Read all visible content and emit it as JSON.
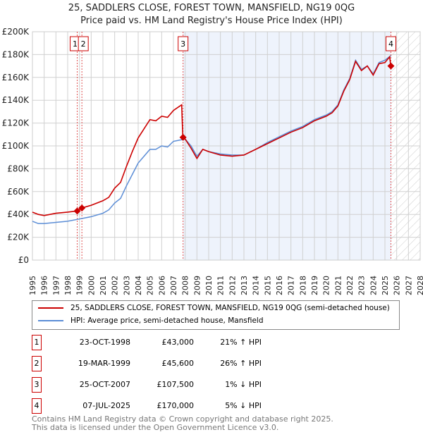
{
  "title": "25, SADDLERS CLOSE, FOREST TOWN, MANSFIELD, NG19 0QG",
  "subtitle": "Price paid vs. HM Land Registry's House Price Index (HPI)",
  "chart_data": {
    "type": "line",
    "ylim": [
      0,
      200000
    ],
    "xlim": [
      1995,
      2028
    ],
    "yticks": [
      "£0",
      "£20K",
      "£40K",
      "£60K",
      "£80K",
      "£100K",
      "£120K",
      "£140K",
      "£160K",
      "£180K",
      "£200K"
    ],
    "xticks": [
      "1995",
      "1996",
      "1997",
      "1998",
      "1999",
      "2000",
      "2001",
      "2002",
      "2003",
      "2004",
      "2005",
      "2006",
      "2007",
      "2008",
      "2009",
      "2010",
      "2011",
      "2012",
      "2013",
      "2014",
      "2015",
      "2016",
      "2017",
      "2018",
      "2019",
      "2020",
      "2021",
      "2022",
      "2023",
      "2024",
      "2025",
      "2026",
      "2027",
      "2028"
    ],
    "series": [
      {
        "name": "25, SADDLERS CLOSE, FOREST TOWN, MANSFIELD, NG19 0QG (semi-detached house)",
        "color": "#cc0000",
        "x": [
          1995,
          1995.5,
          1996,
          1997,
          1998,
          1998.8,
          1999.2,
          2000,
          2001,
          2001.5,
          2002,
          2002.5,
          2003,
          2003.5,
          2004,
          2004.5,
          2005,
          2005.5,
          2006,
          2006.5,
          2007,
          2007.7,
          2007.8,
          2008,
          2008.5,
          2009,
          2009.5,
          2010,
          2011,
          2012,
          2013,
          2014,
          2015,
          2016,
          2017,
          2018,
          2019,
          2020,
          2020.5,
          2021,
          2021.5,
          2022,
          2022.5,
          2023,
          2023.5,
          2024,
          2024.5,
          2025,
          2025.4,
          2025.5
        ],
        "y": [
          42000,
          40000,
          39000,
          41000,
          42000,
          43000,
          45600,
          48000,
          52000,
          55000,
          63000,
          68000,
          82000,
          95000,
          107000,
          115000,
          123000,
          122000,
          126000,
          125000,
          131000,
          136000,
          107500,
          106000,
          98000,
          89000,
          97000,
          95000,
          92000,
          91000,
          92000,
          97000,
          102000,
          107000,
          112000,
          116000,
          122000,
          126000,
          129000,
          135000,
          148000,
          158000,
          174000,
          166000,
          170000,
          162000,
          172000,
          173000,
          178000,
          170000
        ]
      },
      {
        "name": "HPI: Average price, semi-detached house, Mansfield",
        "color": "#5b8dd6",
        "x": [
          1995,
          1995.5,
          1996,
          1997,
          1998,
          1999,
          2000,
          2001,
          2001.5,
          2002,
          2002.5,
          2003,
          2003.5,
          2004,
          2004.5,
          2005,
          2005.5,
          2006,
          2006.5,
          2007,
          2007.5,
          2008,
          2008.5,
          2009,
          2009.5,
          2010,
          2011,
          2012,
          2013,
          2014,
          2015,
          2016,
          2017,
          2018,
          2019,
          2020,
          2020.5,
          2021,
          2021.5,
          2022,
          2022.5,
          2023,
          2023.5,
          2024,
          2024.5,
          2025,
          2025.5
        ],
        "y": [
          34000,
          32000,
          32000,
          33000,
          34000,
          36000,
          38000,
          41000,
          44000,
          50000,
          54000,
          65000,
          75000,
          85000,
          91000,
          97000,
          97000,
          100000,
          99000,
          104000,
          105000,
          106000,
          100000,
          91000,
          97000,
          95000,
          93000,
          92000,
          92000,
          97000,
          103000,
          108000,
          113000,
          117000,
          123000,
          127000,
          130000,
          136000,
          149000,
          159000,
          175000,
          167000,
          170000,
          163000,
          173000,
          175000,
          179000
        ]
      }
    ],
    "sales": [
      {
        "label": "1",
        "date": "23-OCT-1998",
        "x": 1998.81,
        "price": "£43,000",
        "value": 43000,
        "hpi": "21% ↑ HPI"
      },
      {
        "label": "2",
        "date": "19-MAR-1999",
        "x": 1999.21,
        "price": "£45,600",
        "value": 45600,
        "hpi": "26% ↑ HPI"
      },
      {
        "label": "3",
        "date": "25-OCT-2007",
        "x": 2007.82,
        "price": "£107,500",
        "value": 107500,
        "hpi": "1% ↓ HPI"
      },
      {
        "label": "4",
        "date": "07-JUL-2025",
        "x": 2025.51,
        "price": "£170,000",
        "value": 170000,
        "hpi": "5% ↓ HPI"
      }
    ]
  },
  "footer1": "Contains HM Land Registry data © Crown copyright and database right 2025.",
  "footer2": "This data is licensed under the Open Government Licence v3.0."
}
